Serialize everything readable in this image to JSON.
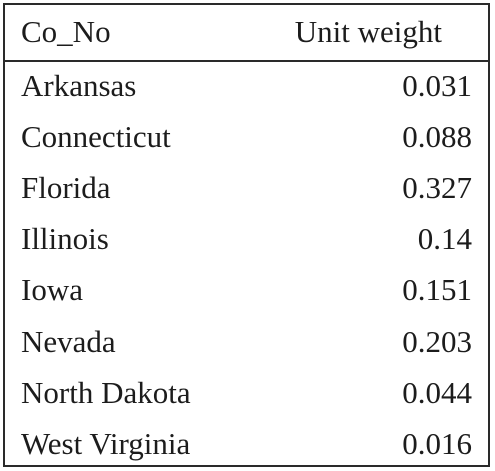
{
  "chart_data": {
    "type": "table",
    "columns": [
      "Co_No",
      "Unit weight"
    ],
    "rows": [
      {
        "name": "Arkansas",
        "value": "0.031"
      },
      {
        "name": "Connecticut",
        "value": "0.088"
      },
      {
        "name": "Florida",
        "value": "0.327"
      },
      {
        "name": "Illinois",
        "value": "0.14"
      },
      {
        "name": "Iowa",
        "value": "0.151"
      },
      {
        "name": "Nevada",
        "value": "0.203"
      },
      {
        "name": "North Dakota",
        "value": "0.044"
      },
      {
        "name": "West Virginia",
        "value": "0.016"
      }
    ]
  }
}
